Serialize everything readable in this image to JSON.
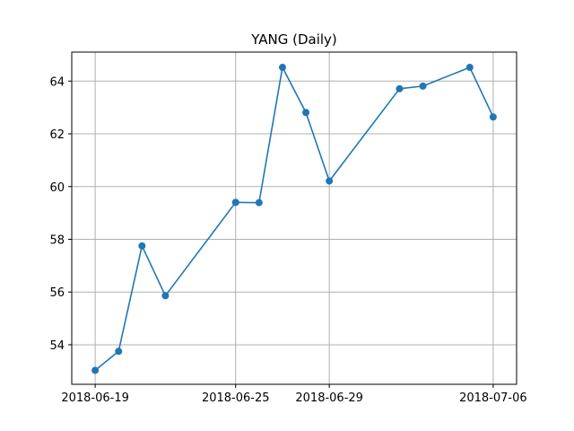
{
  "chart_data": {
    "type": "line",
    "title": "YANG (Daily)",
    "xlabel": "",
    "ylabel": "",
    "x": [
      "2018-06-19",
      "2018-06-20",
      "2018-06-21",
      "2018-06-22",
      "2018-06-25",
      "2018-06-26",
      "2018-06-27",
      "2018-06-28",
      "2018-06-29",
      "2018-07-02",
      "2018-07-03",
      "2018-07-05",
      "2018-07-06"
    ],
    "series": [
      {
        "values": [
          53.03,
          53.75,
          57.75,
          55.86,
          59.4,
          59.39,
          64.52,
          62.81,
          60.21,
          63.71,
          63.81,
          64.52,
          62.64
        ],
        "color": "#1f77b4",
        "marker": "circle"
      }
    ],
    "xlim": [
      "2018-06-18",
      "2018-07-07"
    ],
    "ylim": [
      52.5,
      65.1
    ],
    "x_ticks": [
      "2018-06-19",
      "2018-06-25",
      "2018-06-29",
      "2018-07-06"
    ],
    "y_ticks": [
      54,
      56,
      58,
      60,
      62,
      64
    ],
    "grid": true,
    "grid_color": "#b0b0b0"
  }
}
